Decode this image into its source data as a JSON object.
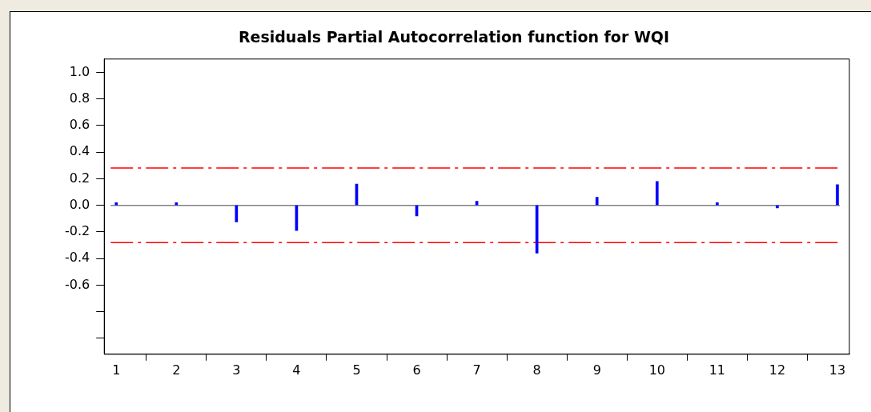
{
  "chart_data": {
    "type": "bar",
    "title": "Residuals Partial Autocorrelation function for WQI",
    "x": [
      1,
      2,
      3,
      4,
      5,
      6,
      7,
      8,
      9,
      10,
      11,
      12,
      13
    ],
    "values": [
      0.02,
      0.02,
      -0.125,
      -0.19,
      0.16,
      -0.08,
      0.03,
      -0.36,
      0.06,
      0.18,
      0.02,
      -0.02,
      0.155
    ],
    "color": "#0000ff",
    "xlim": [
      0.8,
      13.2
    ],
    "xticks": [
      1,
      2,
      3,
      4,
      5,
      6,
      7,
      8,
      9,
      10,
      11,
      12,
      13
    ],
    "ylim": [
      -1.12,
      1.1
    ],
    "yticks": [
      {
        "value": 1,
        "label": "1.0"
      },
      0.8,
      0.6,
      0.4,
      0.2,
      {
        "value": 0,
        "label": "0.0"
      },
      -0.2,
      -0.4,
      -0.6,
      {
        "value": -0.8,
        "label": null
      },
      {
        "value": -1,
        "label": null
      }
    ],
    "ref_lines": [
      {
        "axis": "y",
        "value": 0.28,
        "color": "#ff0000",
        "line_style": "dashed"
      },
      {
        "axis": "y",
        "value": -0.28,
        "color": "#ff0000",
        "line_style": "dashed"
      },
      {
        "axis": "y",
        "value": 0,
        "color": "#808080",
        "line_style": "solid"
      }
    ],
    "grid": false,
    "legend": false
  }
}
